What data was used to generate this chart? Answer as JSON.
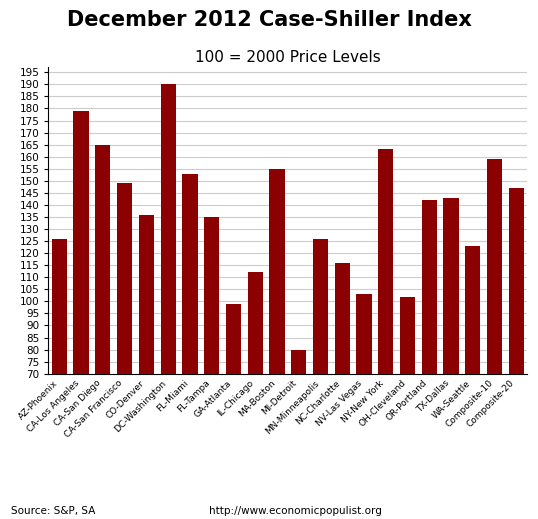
{
  "title": "December 2012 Case-Shiller Index",
  "subtitle": "100 = 2000 Price Levels",
  "categories": [
    "AZ-Phoenix",
    "CA-Los Angeles",
    "CA-San Diego",
    "CA-San Francisco",
    "CO-Denver",
    "DC-Washington",
    "FL-Miami",
    "FL-Tampa",
    "GA-Atlanta",
    "IL-Chicago",
    "MA-Boston",
    "MI-Detroit",
    "MN-Minneapolis",
    "NC-Charlotte",
    "NV-Las Vegas",
    "NY-New York",
    "OH-Cleveland",
    "OR-Portland",
    "TX-Dallas",
    "WA-Seattle",
    "Composite-10",
    "Composite-20"
  ],
  "values": [
    126,
    179,
    165,
    149,
    136,
    190,
    153,
    135,
    99,
    112,
    155,
    80,
    126,
    116,
    103,
    163,
    102,
    142,
    143,
    123,
    159,
    147
  ],
  "bar_color": "#8B0000",
  "ylim": [
    70,
    197
  ],
  "yticks": [
    70,
    75,
    80,
    85,
    90,
    95,
    100,
    105,
    110,
    115,
    120,
    125,
    130,
    135,
    140,
    145,
    150,
    155,
    160,
    165,
    170,
    175,
    180,
    185,
    190,
    195
  ],
  "source_text": "Source: S&P, SA",
  "url_text": "http://www.economicpopulist.org",
  "background_color": "#ffffff",
  "grid_color": "#cccccc",
  "title_fontsize": 15,
  "subtitle_fontsize": 11,
  "tick_label_fontsize": 6.5,
  "ytick_fontsize": 7.5,
  "source_fontsize": 7.5,
  "url_fontsize": 7.5,
  "bar_width": 0.7
}
